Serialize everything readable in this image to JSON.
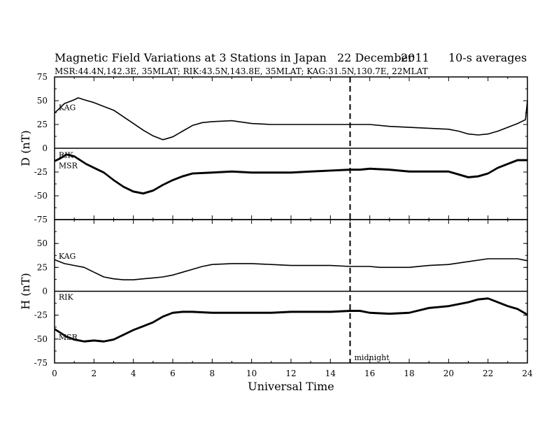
{
  "chart_data": {
    "type": "line",
    "title": "Magnetic Field Variations at 3 Stations in Japan",
    "title_date": "22 December",
    "title_year": "2011",
    "title_avg": "10-s averages",
    "subtitle": "MSR:44.4N,142.3E, 35MLAT;  RIK:43.5N,143.8E, 35MLAT;  KAG:31.5N,130.7E, 22MLAT",
    "xlabel": "Universal Time",
    "xlim": [
      0,
      24
    ],
    "x_ticks": [
      0,
      2,
      4,
      6,
      8,
      10,
      12,
      14,
      16,
      18,
      20,
      22,
      24
    ],
    "grid": false,
    "legend": "none",
    "marker": {
      "x": 15,
      "label": "midnight",
      "style": "dashed"
    },
    "panels": [
      {
        "ylabel": "D (nT)",
        "ylim": [
          -75,
          75
        ],
        "y_ticks": [
          75,
          50,
          25,
          0,
          -25,
          -50,
          -75
        ],
        "series": [
          {
            "name": "KAG",
            "x": [
              0,
              0.5,
              1,
              1.2,
              1.5,
              2,
              2.5,
              3,
              3.5,
              4,
              4.5,
              5,
              5.5,
              6,
              6.5,
              7,
              7.5,
              8,
              9,
              10,
              11,
              12,
              13,
              14,
              15,
              16,
              17,
              18,
              19,
              20,
              20.5,
              21,
              21.5,
              22,
              22.5,
              23,
              23.5,
              23.9,
              24
            ],
            "values": [
              37,
              47,
              51,
              53,
              51,
              48,
              44,
              40,
              33,
              26,
              19,
              13,
              9,
              12,
              18,
              24,
              27,
              28,
              29,
              26,
              25,
              25,
              25,
              25,
              25,
              25,
              23,
              22,
              21,
              20,
              18,
              15,
              14,
              15,
              18,
              22,
              26,
              30,
              50
            ]
          },
          {
            "name": "RIK",
            "x": [
              0,
              0.3,
              0.6,
              1,
              1.3,
              1.6,
              2,
              2.5,
              3,
              3.5,
              4,
              4.5,
              5,
              5.5,
              6,
              6.5,
              7,
              8,
              9,
              10,
              11,
              12,
              13,
              14,
              15,
              15.5,
              16,
              17,
              18,
              19,
              20,
              20.5,
              21,
              21.5,
              22,
              22.5,
              23,
              23.5,
              24
            ],
            "values": [
              -13,
              -10,
              -6,
              -8,
              -12,
              -16,
              -20,
              -25,
              -33,
              -40,
              -45,
              -47,
              -44,
              -38,
              -33,
              -29,
              -26,
              -25,
              -24,
              -25,
              -25,
              -25,
              -24,
              -23,
              -22,
              -22,
              -21,
              -22,
              -24,
              -24,
              -24,
              -27,
              -30,
              -29,
              -26,
              -20,
              -16,
              -12,
              -12
            ]
          },
          {
            "name": "MSR",
            "x": [
              0,
              0.3,
              0.6,
              1,
              1.3,
              1.6,
              2,
              2.5,
              3,
              3.5,
              4,
              4.5,
              5,
              5.5,
              6,
              6.5,
              7,
              8,
              9,
              10,
              11,
              12,
              13,
              14,
              15,
              15.5,
              16,
              17,
              18,
              19,
              20,
              20.5,
              21,
              21.5,
              22,
              22.5,
              23,
              23.5,
              24
            ],
            "values": [
              -14,
              -11,
              -7,
              -9,
              -13,
              -17,
              -21,
              -26,
              -34,
              -41,
              -46,
              -48,
              -45,
              -39,
              -34,
              -30,
              -27,
              -26,
              -25,
              -26,
              -26,
              -26,
              -25,
              -24,
              -23,
              -23,
              -22,
              -23,
              -25,
              -25,
              -25,
              -28,
              -31,
              -30,
              -27,
              -21,
              -17,
              -13,
              -13
            ]
          }
        ],
        "series_labels": [
          {
            "text": "KAG",
            "x": 0.1,
            "y": 43
          },
          {
            "text": "RIK",
            "x": 0.1,
            "y": -7
          },
          {
            "text": "MSR",
            "x": 0.1,
            "y": -18
          }
        ]
      },
      {
        "ylabel": "H (nT)",
        "ylim": [
          -75,
          75
        ],
        "y_ticks": [
          75,
          50,
          25,
          0,
          -25,
          -50,
          -75
        ],
        "series": [
          {
            "name": "KAG",
            "x": [
              0,
              0.5,
              1,
              1.5,
              2,
              2.5,
              3,
              3.5,
              4,
              4.5,
              5,
              5.5,
              6,
              6.5,
              7,
              7.5,
              8,
              9,
              10,
              11,
              12,
              13,
              14,
              15,
              16,
              16.5,
              17,
              18,
              19,
              20,
              21,
              22,
              23,
              23.5,
              24
            ],
            "values": [
              33,
              29,
              27,
              25,
              20,
              15,
              13,
              12,
              12,
              13,
              14,
              15,
              17,
              20,
              23,
              26,
              28,
              29,
              29,
              28,
              27,
              27,
              27,
              26,
              26,
              25,
              25,
              25,
              27,
              28,
              31,
              34,
              34,
              34,
              32
            ]
          },
          {
            "name": "RIK",
            "x": [
              0,
              0.3,
              0.6,
              1,
              1.5,
              2,
              2.5,
              3,
              3.5,
              4,
              4.5,
              5,
              5.5,
              6,
              6.5,
              7,
              8,
              9,
              10,
              11,
              12,
              13,
              14,
              15,
              15.5,
              16,
              17,
              18,
              19,
              19.5,
              20,
              21,
              21.5,
              22,
              22.5,
              23,
              23.5,
              24
            ],
            "values": [
              -39,
              -43,
              -47,
              -50,
              -52,
              -51,
              -52,
              -50,
              -45,
              -40,
              -36,
              -32,
              -26,
              -22,
              -21,
              -21,
              -22,
              -22,
              -22,
              -22,
              -21,
              -21,
              -21,
              -20,
              -20,
              -22,
              -23,
              -22,
              -17,
              -16,
              -15,
              -11,
              -8,
              -7,
              -11,
              -15,
              -18,
              -24
            ]
          },
          {
            "name": "MSR",
            "x": [
              0,
              0.3,
              0.6,
              1,
              1.5,
              2,
              2.5,
              3,
              3.5,
              4,
              4.5,
              5,
              5.5,
              6,
              6.5,
              7,
              8,
              9,
              10,
              11,
              12,
              13,
              14,
              15,
              15.5,
              16,
              17,
              18,
              19,
              19.5,
              20,
              21,
              21.5,
              22,
              22.5,
              23,
              23.5,
              24
            ],
            "values": [
              -40,
              -44,
              -48,
              -51,
              -53,
              -52,
              -53,
              -51,
              -46,
              -41,
              -37,
              -33,
              -27,
              -23,
              -22,
              -22,
              -23,
              -23,
              -23,
              -23,
              -22,
              -22,
              -22,
              -21,
              -21,
              -23,
              -24,
              -23,
              -18,
              -17,
              -16,
              -12,
              -9,
              -8,
              -12,
              -16,
              -19,
              -25
            ]
          }
        ],
        "series_labels": [
          {
            "text": "KAG",
            "x": 0.1,
            "y": 37
          },
          {
            "text": "RIK",
            "x": 0.1,
            "y": -6
          },
          {
            "text": "MSR",
            "x": 0.1,
            "y": -48
          }
        ]
      }
    ]
  }
}
